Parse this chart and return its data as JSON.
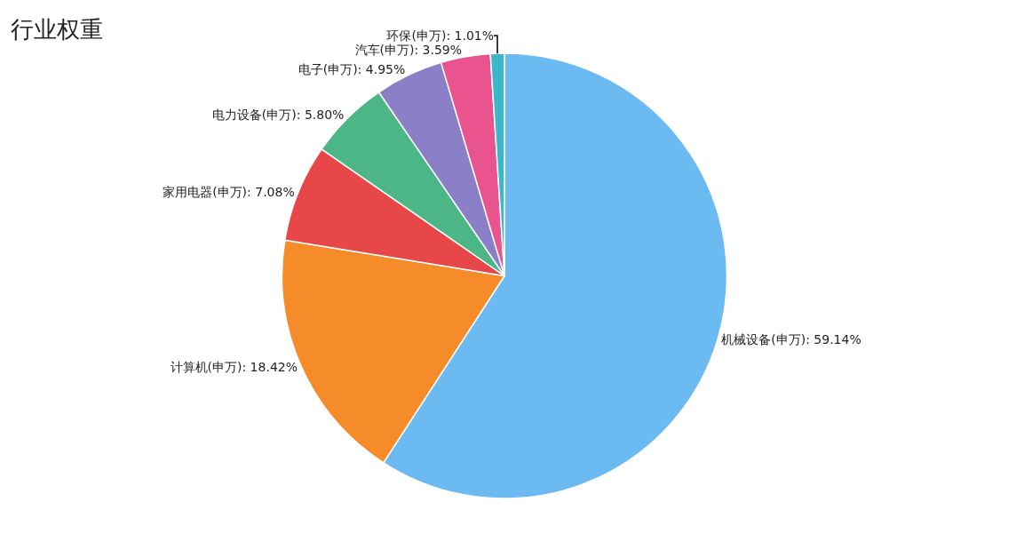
{
  "chart_data": {
    "type": "pie",
    "title": "行业权重",
    "categories": [
      "机械设备(申万)",
      "计算机(申万)",
      "家用电器(申万)",
      "电力设备(申万)",
      "电子(申万)",
      "汽车(申万)",
      "环保(申万)"
    ],
    "values": [
      59.14,
      18.42,
      7.08,
      5.8,
      4.95,
      3.59,
      1.01
    ],
    "value_labels": [
      "59.14%",
      "18.42%",
      "7.08%",
      "5.80%",
      "4.95%",
      "3.59%",
      "1.01%"
    ],
    "colors": [
      "#6cbaf2",
      "#f68b2a",
      "#e8474a",
      "#4cb686",
      "#8b7fc8",
      "#e9548f",
      "#3bb7c9"
    ],
    "legend": false
  }
}
